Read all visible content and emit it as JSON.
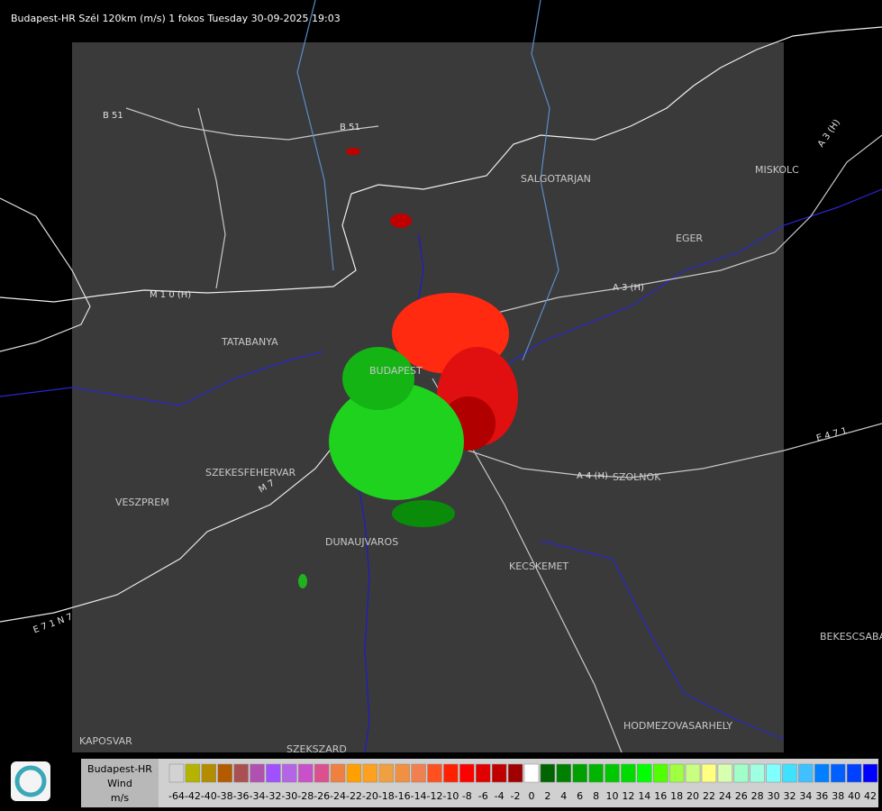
{
  "header": {
    "title": "Budapest-HR Szél 120km (m/s) 1 fokos Tuesday 30-09-2025 19:03"
  },
  "map": {
    "cities": [
      "SALGOTARJAN",
      "MISKOLC",
      "EGER",
      "TATABANYA",
      "BUDAPEST",
      "SZEKESFEHERVAR",
      "SZOLNOK",
      "VESZPREM",
      "DUNAUJVAROS",
      "KECSKEMET",
      "BEKESCSABA",
      "HODMEZOVASARHELY",
      "KAPOSVAR",
      "SZEKSZARD"
    ],
    "roads": [
      "B 51",
      "B 51",
      "M 1 0 (H)",
      "A 3 (H)",
      "A 3 (H)",
      "A 4 (H)",
      "E 4 7 1",
      "E 7 1 N 7",
      "M 7"
    ]
  },
  "legend": {
    "title": [
      "Budapest-HR",
      "Wind",
      "m/s"
    ],
    "entries": [
      {
        "label": -64,
        "color": "#d2d2d2"
      },
      {
        "label": -42,
        "color": "#b4b400"
      },
      {
        "label": -40,
        "color": "#b48c00"
      },
      {
        "label": -38,
        "color": "#b45a00"
      },
      {
        "label": -36,
        "color": "#aa5050"
      },
      {
        "label": -34,
        "color": "#b050b0"
      },
      {
        "label": -32,
        "color": "#a050ff"
      },
      {
        "label": -30,
        "color": "#b464e6"
      },
      {
        "label": -28,
        "color": "#c850c8"
      },
      {
        "label": -26,
        "color": "#dc5090"
      },
      {
        "label": -24,
        "color": "#f08040"
      },
      {
        "label": -22,
        "color": "#ffa000"
      },
      {
        "label": -20,
        "color": "#ffa020"
      },
      {
        "label": -18,
        "color": "#f0a040"
      },
      {
        "label": -16,
        "color": "#f09040"
      },
      {
        "label": -14,
        "color": "#f08050"
      },
      {
        "label": -12,
        "color": "#ff5020"
      },
      {
        "label": -10,
        "color": "#ff2000"
      },
      {
        "label": -8,
        "color": "#ff0000"
      },
      {
        "label": -6,
        "color": "#e00000"
      },
      {
        "label": -4,
        "color": "#c00000"
      },
      {
        "label": -2,
        "color": "#a00000"
      },
      {
        "label": 0,
        "color": "#ffffff"
      },
      {
        "label": 2,
        "color": "#006400"
      },
      {
        "label": 4,
        "color": "#008000"
      },
      {
        "label": 6,
        "color": "#00a000"
      },
      {
        "label": 8,
        "color": "#00b400"
      },
      {
        "label": 10,
        "color": "#00c800"
      },
      {
        "label": 12,
        "color": "#00dc00"
      },
      {
        "label": 14,
        "color": "#00ff00"
      },
      {
        "label": 16,
        "color": "#50ff00"
      },
      {
        "label": 18,
        "color": "#a0ff40"
      },
      {
        "label": 20,
        "color": "#c8ff80"
      },
      {
        "label": 22,
        "color": "#ffff80"
      },
      {
        "label": 24,
        "color": "#d8ffb0"
      },
      {
        "label": 26,
        "color": "#a0ffc8"
      },
      {
        "label": 28,
        "color": "#a0ffe0"
      },
      {
        "label": 30,
        "color": "#80ffff"
      },
      {
        "label": 32,
        "color": "#40e0ff"
      },
      {
        "label": 34,
        "color": "#40c0ff"
      },
      {
        "label": 36,
        "color": "#0080ff"
      },
      {
        "label": 38,
        "color": "#0060ff"
      },
      {
        "label": 40,
        "color": "#0040ff"
      },
      {
        "label": 42,
        "color": "#0000ff"
      }
    ]
  }
}
